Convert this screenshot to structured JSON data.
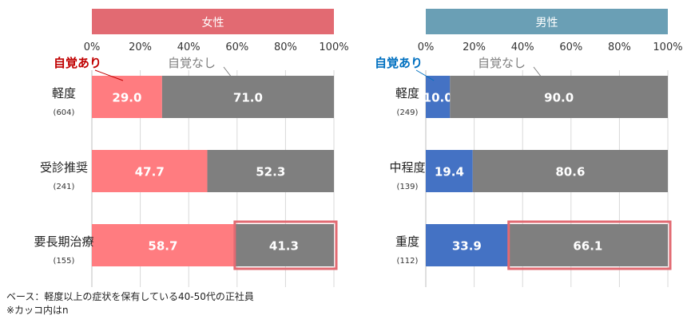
{
  "chart_data": [
    {
      "type": "bar",
      "orientation": "horizontal",
      "stacked": true,
      "title": "女性",
      "title_color": "#e26a72",
      "categories": [
        "軽度",
        "受診推奨",
        "要長期治療"
      ],
      "category_n": [
        "(604)",
        "(241)",
        "(155)"
      ],
      "xlim": [
        0,
        100
      ],
      "x_ticks": [
        "0%",
        "20%",
        "40%",
        "60%",
        "80%",
        "100%"
      ],
      "grid": true,
      "series": [
        {
          "name": "自覚あり",
          "color": "#ff7c80",
          "values": [
            29.0,
            47.7,
            58.7
          ],
          "labels": [
            "29.0",
            "47.7",
            "58.7"
          ]
        },
        {
          "name": "自覚なし",
          "color": "#7f7f7f",
          "values": [
            71.0,
            52.3,
            41.3
          ],
          "labels": [
            "71.0",
            "52.3",
            "41.3"
          ]
        }
      ],
      "legend": {
        "aware_color": "#c00000",
        "unaware_color": "#7f7f7f",
        "placement": "top-left"
      },
      "highlight": {
        "series": 1,
        "category": 2,
        "color": "#e26a72"
      }
    },
    {
      "type": "bar",
      "orientation": "horizontal",
      "stacked": true,
      "title": "男性",
      "title_color": "#6a9fb5",
      "categories": [
        "軽度",
        "中程度",
        "重度"
      ],
      "category_n": [
        "(249)",
        "(139)",
        "(112)"
      ],
      "xlim": [
        0,
        100
      ],
      "x_ticks": [
        "0%",
        "20%",
        "40%",
        "60%",
        "80%",
        "100%"
      ],
      "grid": true,
      "series": [
        {
          "name": "自覚あり",
          "color": "#4472c4",
          "values": [
            10.0,
            19.4,
            33.9
          ],
          "labels": [
            "10.0",
            "19.4",
            "33.9"
          ]
        },
        {
          "name": "自覚なし",
          "color": "#7f7f7f",
          "values": [
            90.0,
            80.6,
            66.1
          ],
          "labels": [
            "90.0",
            "80.6",
            "66.1"
          ]
        }
      ],
      "legend": {
        "aware_color": "#0070c0",
        "unaware_color": "#7f7f7f",
        "placement": "top-left"
      },
      "highlight": {
        "series": 1,
        "category": 2,
        "color": "#e26a72"
      }
    }
  ],
  "footnotes": {
    "base": "ベース：軽度以上の症状を保有している40-50代の正社員",
    "n_note": "※カッコ内はn"
  }
}
